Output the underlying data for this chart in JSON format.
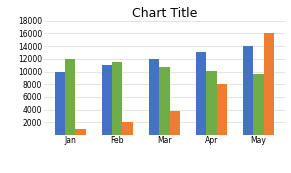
{
  "title": "Chart Title",
  "categories": [
    "Jan",
    "Feb",
    "Mar",
    "Apr",
    "May"
  ],
  "series": {
    "East": [
      10000,
      11000,
      12000,
      13000,
      14000
    ],
    "Central": [
      12000,
      11500,
      10700,
      10100,
      9600
    ],
    "West": [
      1000,
      2000,
      3800,
      8000,
      16000
    ]
  },
  "colors": {
    "East": "#4472C4",
    "Central": "#70AD47",
    "West": "#ED7D31"
  },
  "ylim": [
    0,
    18000
  ],
  "yticks": [
    0,
    2000,
    4000,
    6000,
    8000,
    10000,
    12000,
    14000,
    16000,
    18000
  ],
  "title_fontsize": 9,
  "tick_fontsize": 5.5,
  "legend_fontsize": 5.5,
  "bar_width": 0.22,
  "background_color": "#FFFFFF",
  "grid_color": "#D9D9D9"
}
